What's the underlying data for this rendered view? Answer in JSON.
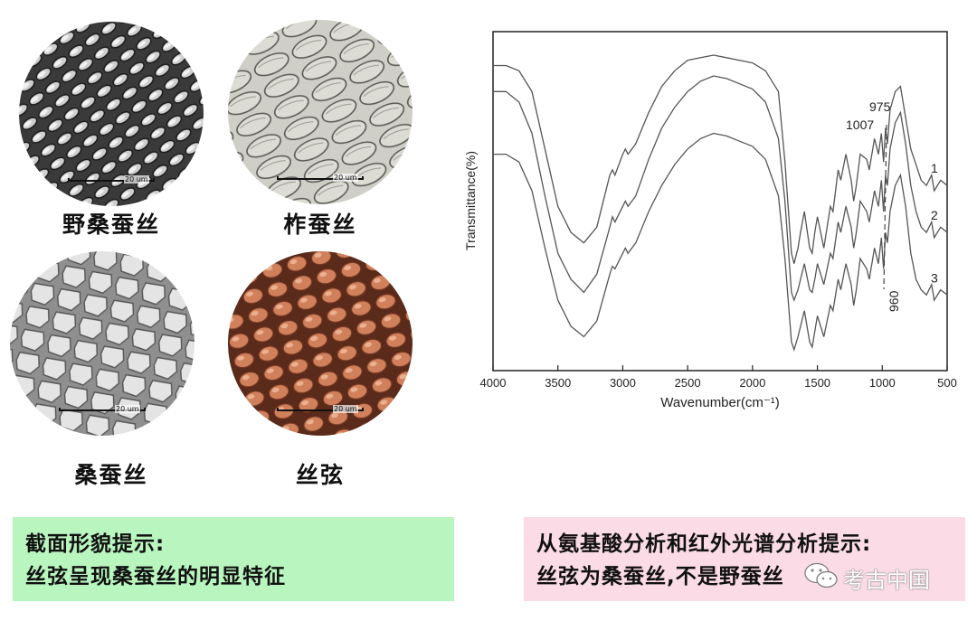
{
  "panels": [
    {
      "label": "野桑蚕丝",
      "scale": "20 um"
    },
    {
      "label": "柞蚕丝",
      "scale": "20 um"
    },
    {
      "label": "桑蚕丝",
      "scale": "20 um"
    },
    {
      "label": "丝弦",
      "scale": "20 um"
    }
  ],
  "notes": {
    "left": [
      "截面形貌提示:",
      "丝弦呈现桑蚕丝的明显特征"
    ],
    "right": [
      "从氨基酸分析和红外光谱分析提示:",
      "丝弦为桑蚕丝,不是野蚕丝"
    ]
  },
  "watermark": {
    "text": "考古中国",
    "icon": "wechat-icon"
  },
  "colors": {
    "green_box": "#b9f5bf",
    "pink_box": "#fadbe6",
    "spectrum_line": "#555555"
  },
  "chart_data": {
    "type": "line",
    "xlabel": "Wavenumber(cm⁻¹)",
    "ylabel": "Transmittance(%)",
    "xlim": [
      4000,
      500
    ],
    "x_reversed": true,
    "xticks": [
      4000,
      3500,
      3000,
      2500,
      2000,
      1500,
      1000,
      500
    ],
    "annotations": [
      "975",
      "1007",
      "960"
    ],
    "series": [
      {
        "name": "1",
        "x": [
          4000,
          3900,
          3800,
          3700,
          3600,
          3500,
          3400,
          3300,
          3200,
          3100,
          3080,
          3060,
          3000,
          2980,
          2960,
          2900,
          2800,
          2700,
          2600,
          2500,
          2400,
          2300,
          2200,
          2100,
          2000,
          1900,
          1800,
          1750,
          1700,
          1680,
          1650,
          1630,
          1600,
          1560,
          1540,
          1520,
          1500,
          1450,
          1400,
          1380,
          1340,
          1320,
          1280,
          1240,
          1220,
          1200,
          1170,
          1120,
          1100,
          1060,
          1030,
          1007,
          990,
          975,
          960,
          940,
          900,
          860,
          820,
          780,
          740,
          700,
          660,
          620,
          600,
          550,
          500
        ],
        "y": [
          0.92,
          0.92,
          0.9,
          0.82,
          0.6,
          0.38,
          0.28,
          0.24,
          0.3,
          0.5,
          0.52,
          0.5,
          0.58,
          0.6,
          0.58,
          0.62,
          0.74,
          0.84,
          0.9,
          0.94,
          0.95,
          0.96,
          0.95,
          0.94,
          0.93,
          0.9,
          0.82,
          0.55,
          0.2,
          0.16,
          0.22,
          0.28,
          0.36,
          0.22,
          0.2,
          0.28,
          0.34,
          0.22,
          0.38,
          0.36,
          0.52,
          0.48,
          0.58,
          0.48,
          0.4,
          0.46,
          0.58,
          0.56,
          0.52,
          0.64,
          0.58,
          0.66,
          0.55,
          0.68,
          0.62,
          0.75,
          0.82,
          0.84,
          0.72,
          0.6,
          0.54,
          0.48,
          0.46,
          0.5,
          0.44,
          0.48,
          0.46
        ]
      },
      {
        "name": "2",
        "x": [
          4000,
          3900,
          3800,
          3700,
          3600,
          3500,
          3400,
          3300,
          3200,
          3100,
          3080,
          3060,
          3000,
          2980,
          2960,
          2900,
          2800,
          2700,
          2600,
          2500,
          2400,
          2300,
          2200,
          2100,
          2000,
          1900,
          1800,
          1750,
          1700,
          1680,
          1650,
          1630,
          1600,
          1560,
          1540,
          1520,
          1500,
          1450,
          1400,
          1380,
          1340,
          1320,
          1280,
          1240,
          1220,
          1200,
          1170,
          1120,
          1100,
          1060,
          1030,
          1007,
          990,
          975,
          960,
          940,
          900,
          860,
          820,
          780,
          740,
          700,
          660,
          620,
          600,
          550,
          500
        ],
        "y": [
          0.82,
          0.82,
          0.78,
          0.66,
          0.42,
          0.2,
          0.1,
          0.05,
          0.12,
          0.3,
          0.34,
          0.32,
          0.38,
          0.4,
          0.38,
          0.42,
          0.56,
          0.68,
          0.76,
          0.82,
          0.86,
          0.88,
          0.87,
          0.85,
          0.83,
          0.78,
          0.64,
          0.4,
          0.05,
          0.02,
          0.06,
          0.1,
          0.16,
          0.06,
          0.05,
          0.1,
          0.16,
          0.08,
          0.2,
          0.18,
          0.32,
          0.28,
          0.38,
          0.3,
          0.22,
          0.28,
          0.4,
          0.36,
          0.32,
          0.44,
          0.38,
          0.48,
          0.36,
          0.5,
          0.46,
          0.6,
          0.7,
          0.74,
          0.62,
          0.46,
          0.36,
          0.3,
          0.28,
          0.32,
          0.26,
          0.3,
          0.28
        ]
      },
      {
        "name": "3",
        "x": [
          4000,
          3900,
          3800,
          3700,
          3600,
          3500,
          3400,
          3300,
          3200,
          3100,
          3080,
          3060,
          3000,
          2980,
          2960,
          2900,
          2800,
          2700,
          2600,
          2500,
          2400,
          2300,
          2200,
          2100,
          2000,
          1900,
          1800,
          1750,
          1700,
          1680,
          1650,
          1630,
          1600,
          1560,
          1540,
          1520,
          1500,
          1450,
          1400,
          1380,
          1340,
          1320,
          1280,
          1240,
          1220,
          1200,
          1170,
          1120,
          1100,
          1060,
          1030,
          1007,
          990,
          975,
          960,
          940,
          900,
          860,
          820,
          780,
          740,
          700,
          660,
          620,
          600,
          550,
          500
        ],
        "y": [
          0.58,
          0.58,
          0.55,
          0.44,
          0.22,
          0.02,
          -0.08,
          -0.12,
          -0.06,
          0.12,
          0.15,
          0.14,
          0.2,
          0.22,
          0.2,
          0.24,
          0.36,
          0.46,
          0.54,
          0.6,
          0.64,
          0.66,
          0.65,
          0.63,
          0.61,
          0.56,
          0.42,
          0.18,
          -0.14,
          -0.17,
          -0.12,
          -0.08,
          -0.02,
          -0.14,
          -0.16,
          -0.1,
          -0.04,
          -0.12,
          0.0,
          -0.02,
          0.1,
          0.06,
          0.16,
          0.08,
          0.0,
          0.06,
          0.18,
          0.14,
          0.1,
          0.22,
          0.16,
          0.26,
          0.14,
          0.28,
          0.24,
          0.36,
          0.46,
          0.5,
          0.38,
          0.2,
          0.1,
          0.06,
          0.04,
          0.08,
          0.02,
          0.06,
          0.04
        ]
      }
    ]
  }
}
